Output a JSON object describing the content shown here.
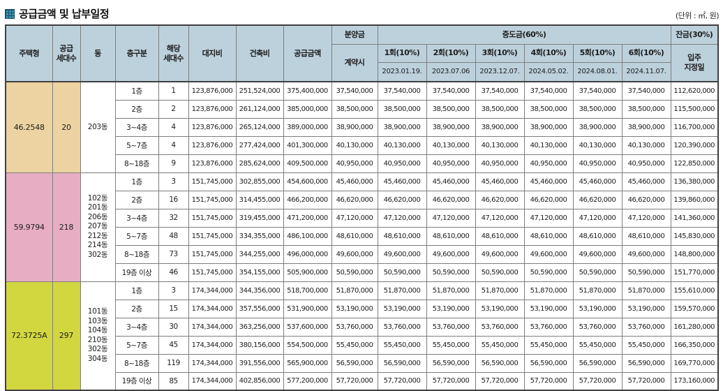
{
  "title": {
    "icon": "grid-square-icon",
    "text": "공급금액 및 납부일정"
  },
  "unit_note": "(단위 : ㎡, 원)",
  "colors": {
    "header_bg": "#bdd1dd",
    "group1_bg": "#edd3a1",
    "group2_bg": "#e7aec3",
    "group3_bg": "#d2d73f",
    "icon_teal": "#3f92b0",
    "border": "#7d7d7d",
    "outer_border": "#3f3f3f"
  },
  "table": {
    "headers": {
      "housing_type": "주택형",
      "supply_units": "공급\n세대수",
      "dong": "동",
      "floor_group": "층구분",
      "unit_count": "해당\n세대수",
      "land_cost": "대지비",
      "construction_cost": "건축비",
      "supply_amount": "공급금액",
      "down_payment": "분양금",
      "at_contract": "계약시",
      "interim_payment": "중도금(60%)",
      "balance": "잔금(30%)",
      "move_in_date": "입주\n지정일",
      "installments": [
        {
          "label": "1회(10%)",
          "date": "2023.01.19."
        },
        {
          "label": "2회(10%)",
          "date": "2023.07.06"
        },
        {
          "label": "3회(10%)",
          "date": "2023.12.07."
        },
        {
          "label": "4회(10%)",
          "date": "2024.05.02."
        },
        {
          "label": "5회(10%)",
          "date": "2024.08.01."
        },
        {
          "label": "6회(10%)",
          "date": "2024.11.07."
        }
      ]
    },
    "groups": [
      {
        "housing_type": "46.2548",
        "supply_units": "20",
        "dong": [
          "203동"
        ],
        "color": "#edd3a1",
        "rows": [
          {
            "floor": "1층",
            "units": "1",
            "land": "123,876,000",
            "construction": "251,524,000",
            "total": "375,400,000",
            "contract": "37,540,000",
            "installments": [
              "37,540,000",
              "37,540,000",
              "37,540,000",
              "37,540,000",
              "37,540,000",
              "37,540,000"
            ],
            "balance": "112,620,000"
          },
          {
            "floor": "2층",
            "units": "2",
            "land": "123,876,000",
            "construction": "261,124,000",
            "total": "385,000,000",
            "contract": "38,500,000",
            "installments": [
              "38,500,000",
              "38,500,000",
              "38,500,000",
              "38,500,000",
              "38,500,000",
              "38,500,000"
            ],
            "balance": "115,500,000"
          },
          {
            "floor": "3~4층",
            "units": "4",
            "land": "123,876,000",
            "construction": "265,124,000",
            "total": "389,000,000",
            "contract": "38,900,000",
            "installments": [
              "38,900,000",
              "38,900,000",
              "38,900,000",
              "38,900,000",
              "38,900,000",
              "38,900,000"
            ],
            "balance": "116,700,000"
          },
          {
            "floor": "5~7층",
            "units": "4",
            "land": "123,876,000",
            "construction": "277,424,000",
            "total": "401,300,000",
            "contract": "40,130,000",
            "installments": [
              "40,130,000",
              "40,130,000",
              "40,130,000",
              "40,130,000",
              "40,130,000",
              "40,130,000"
            ],
            "balance": "120,390,000"
          },
          {
            "floor": "8~18층",
            "units": "9",
            "land": "123,876,000",
            "construction": "285,624,000",
            "total": "409,500,000",
            "contract": "40,950,000",
            "installments": [
              "40,950,000",
              "40,950,000",
              "40,950,000",
              "40,950,000",
              "40,950,000",
              "40,950,000"
            ],
            "balance": "122,850,000"
          }
        ]
      },
      {
        "housing_type": "59.9794",
        "supply_units": "218",
        "dong": [
          "102동",
          "201동",
          "206동",
          "207동",
          "212동",
          "214동",
          "302동"
        ],
        "color": "#e7aec3",
        "rows": [
          {
            "floor": "1층",
            "units": "3",
            "land": "151,745,000",
            "construction": "302,855,000",
            "total": "454,600,000",
            "contract": "45,460,000",
            "installments": [
              "45,460,000",
              "45,460,000",
              "45,460,000",
              "45,460,000",
              "45,460,000",
              "45,460,000"
            ],
            "balance": "136,380,000"
          },
          {
            "floor": "2층",
            "units": "16",
            "land": "151,745,000",
            "construction": "314,455,000",
            "total": "466,200,000",
            "contract": "46,620,000",
            "installments": [
              "46,620,000",
              "46,620,000",
              "46,620,000",
              "46,620,000",
              "46,620,000",
              "46,620,000"
            ],
            "balance": "139,860,000"
          },
          {
            "floor": "3~4층",
            "units": "32",
            "land": "151,745,000",
            "construction": "319,455,000",
            "total": "471,200,000",
            "contract": "47,120,000",
            "installments": [
              "47,120,000",
              "47,120,000",
              "47,120,000",
              "47,120,000",
              "47,120,000",
              "47,120,000"
            ],
            "balance": "141,360,000"
          },
          {
            "floor": "5~7층",
            "units": "48",
            "land": "151,745,000",
            "construction": "334,355,000",
            "total": "486,100,000",
            "contract": "48,610,000",
            "installments": [
              "48,610,000",
              "48,610,000",
              "48,610,000",
              "48,610,000",
              "48,610,000",
              "48,610,000"
            ],
            "balance": "145,830,000"
          },
          {
            "floor": "8~18층",
            "units": "73",
            "land": "151,745,000",
            "construction": "344,255,000",
            "total": "496,000,000",
            "contract": "49,600,000",
            "installments": [
              "49,600,000",
              "49,600,000",
              "49,600,000",
              "49,600,000",
              "49,600,000",
              "49,600,000"
            ],
            "balance": "148,800,000"
          },
          {
            "floor": "19층 이상",
            "units": "46",
            "land": "151,745,000",
            "construction": "354,155,000",
            "total": "505,900,000",
            "contract": "50,590,000",
            "installments": [
              "50,590,000",
              "50,590,000",
              "50,590,000",
              "50,590,000",
              "50,590,000",
              "50,590,000"
            ],
            "balance": "151,770,000"
          }
        ]
      },
      {
        "housing_type": "72.3725A",
        "supply_units": "297",
        "dong": [
          "101동",
          "103동",
          "104동",
          "210동",
          "302동",
          "304동"
        ],
        "color": "#d2d73f",
        "rows": [
          {
            "floor": "1층",
            "units": "3",
            "land": "174,344,000",
            "construction": "344,356,000",
            "total": "518,700,000",
            "contract": "51,870,000",
            "installments": [
              "51,870,000",
              "51,870,000",
              "51,870,000",
              "51,870,000",
              "51,870,000",
              "51,870,000"
            ],
            "balance": "155,610,000"
          },
          {
            "floor": "2층",
            "units": "15",
            "land": "174,344,000",
            "construction": "357,556,000",
            "total": "531,900,000",
            "contract": "53,190,000",
            "installments": [
              "53,190,000",
              "53,190,000",
              "53,190,000",
              "53,190,000",
              "53,190,000",
              "53,190,000"
            ],
            "balance": "159,570,000"
          },
          {
            "floor": "3~4층",
            "units": "30",
            "land": "174,344,000",
            "construction": "363,256,000",
            "total": "537,600,000",
            "contract": "53,760,000",
            "installments": [
              "53,760,000",
              "53,760,000",
              "53,760,000",
              "53,760,000",
              "53,760,000",
              "53,760,000"
            ],
            "balance": "161,280,000"
          },
          {
            "floor": "5~7층",
            "units": "45",
            "land": "174,344,000",
            "construction": "380,156,000",
            "total": "554,500,000",
            "contract": "55,450,000",
            "installments": [
              "55,450,000",
              "55,450,000",
              "55,450,000",
              "55,450,000",
              "55,450,000",
              "55,450,000"
            ],
            "balance": "166,350,000"
          },
          {
            "floor": "8~18층",
            "units": "119",
            "land": "174,344,000",
            "construction": "391,556,000",
            "total": "565,900,000",
            "contract": "56,590,000",
            "installments": [
              "56,590,000",
              "56,590,000",
              "56,590,000",
              "56,590,000",
              "56,590,000",
              "56,590,000"
            ],
            "balance": "169,770,000"
          },
          {
            "floor": "19층 이상",
            "units": "85",
            "land": "174,344,000",
            "construction": "402,856,000",
            "total": "577,200,000",
            "contract": "57,720,000",
            "installments": [
              "57,720,000",
              "57,720,000",
              "57,720,000",
              "57,720,000",
              "57,720,000",
              "57,720,000"
            ],
            "balance": "173,160,000"
          }
        ]
      }
    ]
  }
}
